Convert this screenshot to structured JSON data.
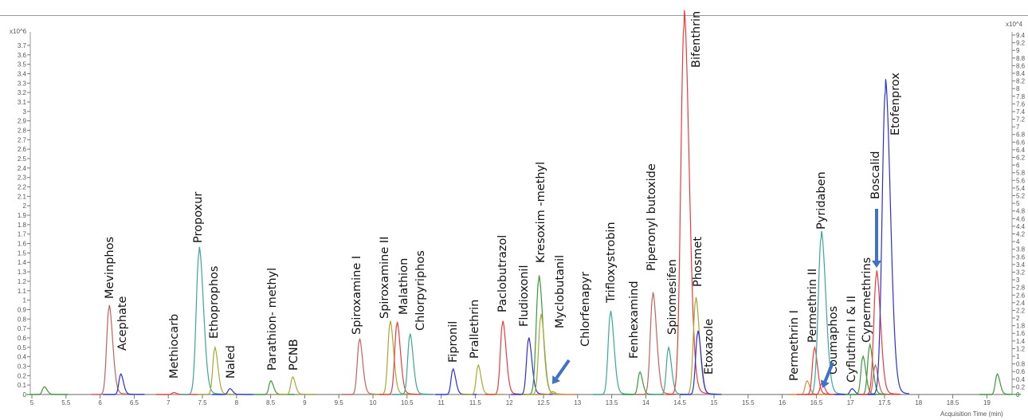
{
  "chart_data": {
    "type": "line",
    "title": "",
    "xlabel": "Acquisition Time (min)",
    "ylabel_left_multiplier": "x10^6",
    "ylabel_right_multiplier": "x10^4",
    "xlim": [
      5,
      19.4
    ],
    "ylim_left": [
      0,
      3.7
    ],
    "ylim_right": [
      0,
      9.4
    ],
    "x_ticks": [
      "5",
      "5.5",
      "6",
      "6.5",
      "7",
      "7.5",
      "8",
      "8.5",
      "9",
      "9.5",
      "10",
      "10.5",
      "11",
      "11.5",
      "12",
      "12.5",
      "13",
      "13.5",
      "14",
      "14.5",
      "15",
      "15.5",
      "16",
      "16.5",
      "17",
      "17.5",
      "18",
      "18.5",
      "19"
    ],
    "y_ticks_left": [
      "0",
      "0.1",
      "0.2",
      "0.3",
      "0.4",
      "0.5",
      "0.6",
      "0.7",
      "0.8",
      "0.9",
      "1",
      "1.1",
      "1.2",
      "1.3",
      "1.4",
      "1.5",
      "1.6",
      "1.7",
      "1.8",
      "1.9",
      "2",
      "2.1",
      "2.2",
      "2.3",
      "2.4",
      "2.5",
      "2.6",
      "2.7",
      "2.8",
      "2.9",
      "3",
      "3.1",
      "3.2",
      "3.3",
      "3.4",
      "3.5",
      "3.6",
      "3.7"
    ],
    "y_ticks_right": [
      "0",
      "0.2",
      "0.4",
      "0.6",
      "0.8",
      "1",
      "1.2",
      "1.4",
      "1.6",
      "1.8",
      "2",
      "2.2",
      "2.4",
      "2.6",
      "2.8",
      "3",
      "3.2",
      "3.4",
      "3.6",
      "3.8",
      "4",
      "4.2",
      "4.4",
      "4.6",
      "4.8",
      "5",
      "5.2",
      "5.4",
      "5.6",
      "5.8",
      "6",
      "6.2",
      "6.4",
      "6.6",
      "6.8",
      "7",
      "7.2",
      "7.4",
      "7.6",
      "7.8",
      "8",
      "8.2",
      "8.4",
      "8.6",
      "8.8",
      "9",
      "9.2",
      "9.4"
    ],
    "grid": false,
    "legend": "none",
    "colors": {
      "red": "#ee3b3b",
      "brown": "#c8605c",
      "blue": "#2d2de0",
      "teal": "#3aa79a",
      "olive": "#a8a830",
      "green": "#3a9a3a",
      "orange": "#e08a3a",
      "arrow": "#3f72c4",
      "axis": "#9a9a9a"
    },
    "peaks": [
      {
        "compound": "",
        "time": 5.18,
        "height": 0.08,
        "color": "green"
      },
      {
        "compound": "Mevinphos",
        "time": 6.13,
        "height": 0.91,
        "color": "brown"
      },
      {
        "compound": "Acephate",
        "time": 6.3,
        "height": 0.21,
        "color": "blue"
      },
      {
        "compound": "Methiocarb",
        "time": 7.08,
        "height": 0.02,
        "color": "red"
      },
      {
        "compound": "Propoxur",
        "time": 7.45,
        "height": 1.5,
        "color": "teal"
      },
      {
        "compound": "Ethoprophos",
        "time": 7.68,
        "height": 0.48,
        "color": "olive"
      },
      {
        "compound": "Naled",
        "time": 7.9,
        "height": 0.06,
        "color": "blue"
      },
      {
        "compound": "Parathion- methyl",
        "time": 8.5,
        "height": 0.14,
        "color": "green"
      },
      {
        "compound": "PCNB",
        "time": 8.82,
        "height": 0.18,
        "color": "olive"
      },
      {
        "compound": "Spiroxamine I",
        "time": 9.8,
        "height": 0.57,
        "color": "brown"
      },
      {
        "compound": "Spiroxamine II",
        "time": 10.25,
        "height": 0.75,
        "color": "olive"
      },
      {
        "compound": "Malathion",
        "time": 10.35,
        "height": 0.74,
        "color": "red"
      },
      {
        "compound": "Chlorpyriphos",
        "time": 10.54,
        "height": 0.62,
        "color": "teal"
      },
      {
        "compound": "Fipronil",
        "time": 11.17,
        "height": 0.26,
        "color": "blue"
      },
      {
        "compound": "Prallethrin",
        "time": 11.54,
        "height": 0.3,
        "color": "olive"
      },
      {
        "compound": "Paclobutrazol",
        "time": 11.9,
        "height": 0.75,
        "color": "red"
      },
      {
        "compound": "Fludioxonil",
        "time": 12.28,
        "height": 0.58,
        "color": "blue"
      },
      {
        "compound": "Kresoxim -methyl",
        "time": 12.43,
        "height": 1.21,
        "color": "green"
      },
      {
        "compound": "Myclobutanil",
        "time": 12.46,
        "height": 0.82,
        "color": "olive"
      },
      {
        "compound": "Chlorfenapyr",
        "time": 12.63,
        "height": 0.03,
        "color": "orange"
      },
      {
        "compound": "Trifloxystrobin",
        "time": 13.48,
        "height": 0.85,
        "color": "teal"
      },
      {
        "compound": "Fenhexamind",
        "time": 13.91,
        "height": 0.23,
        "color": "green"
      },
      {
        "compound": "Piperonyl butoxide",
        "time": 14.1,
        "height": 1.04,
        "color": "brown"
      },
      {
        "compound": "Spiromesifen",
        "time": 14.33,
        "height": 0.48,
        "color": "teal"
      },
      {
        "compound": "Bifenthrin",
        "time": 14.56,
        "height": 3.9,
        "color": "red"
      },
      {
        "compound": "Phosmet",
        "time": 14.73,
        "height": 0.99,
        "color": "olive"
      },
      {
        "compound": "Etoxazole",
        "time": 14.76,
        "height": 0.65,
        "color": "blue"
      },
      {
        "compound": "Permethrin I",
        "time": 16.36,
        "height": 0.14,
        "color": "orange"
      },
      {
        "compound": "Permethrin II",
        "time": 16.47,
        "height": 0.48,
        "color": "red"
      },
      {
        "compound": "Pyridaben",
        "time": 16.57,
        "height": 1.66,
        "color": "teal"
      },
      {
        "compound": "Coumaphos",
        "time": 16.58,
        "height": 0.12,
        "color": "red"
      },
      {
        "compound": "",
        "time": 17.02,
        "height": 0.06,
        "color": "blue"
      },
      {
        "compound": "Cyfluthrin I & II",
        "time": 17.18,
        "height": 0.39,
        "color": "green"
      },
      {
        "compound": "Cypermethrins",
        "time": 17.28,
        "height": 0.51,
        "color": "green"
      },
      {
        "compound": "",
        "time": 17.36,
        "height": 0.3,
        "color": "brown"
      },
      {
        "compound": "Boscalid",
        "time": 17.38,
        "height": 1.26,
        "color": "red"
      },
      {
        "compound": "Etofenprox",
        "time": 17.51,
        "height": 3.2,
        "color": "blue"
      },
      {
        "compound": "",
        "time": 19.15,
        "height": 0.21,
        "color": "green"
      }
    ],
    "arrows_point_to": [
      "Chlorfenapyr",
      "Coumaphos",
      "Boscalid"
    ]
  }
}
